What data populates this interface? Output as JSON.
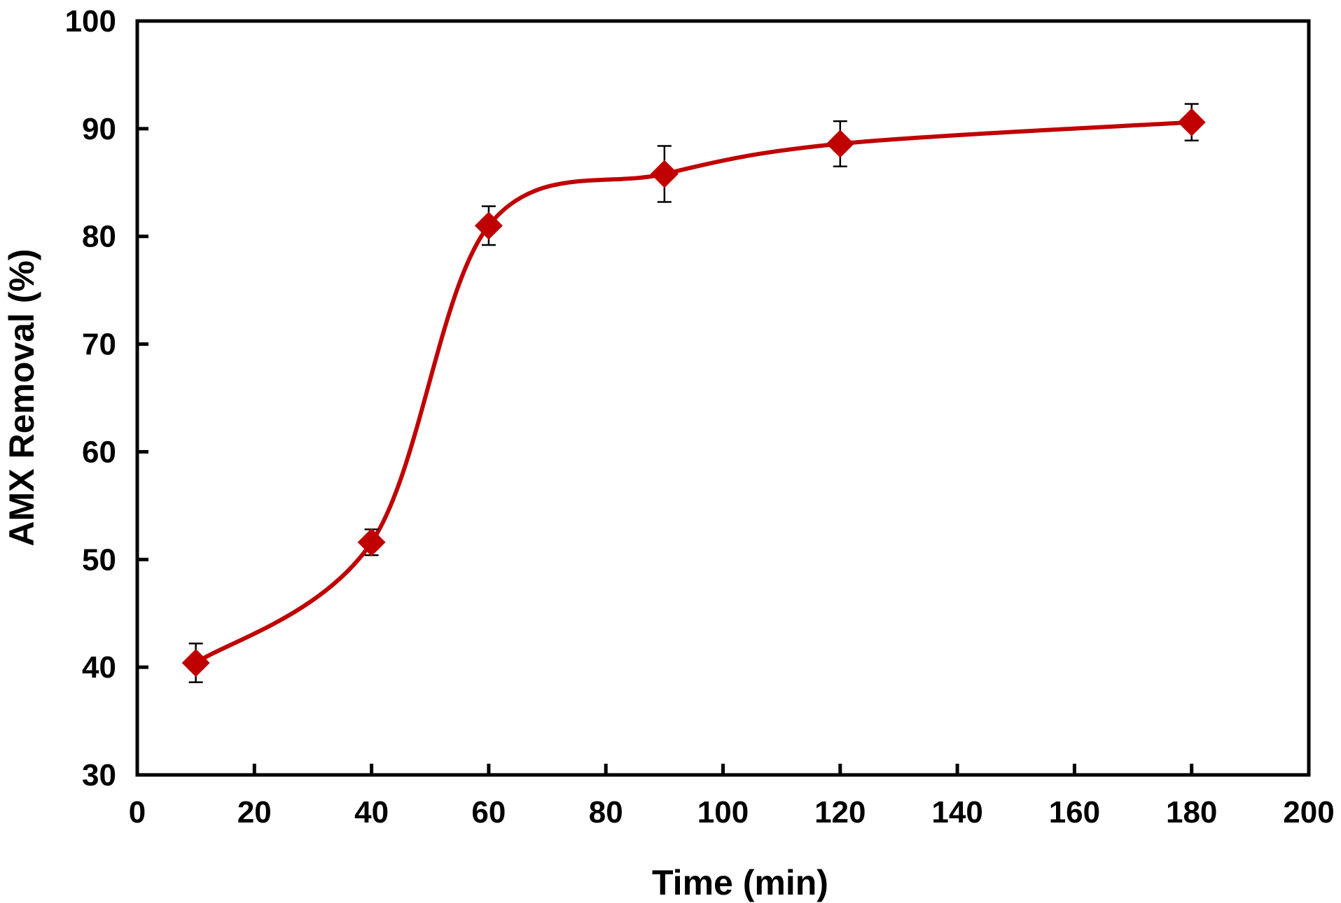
{
  "chart_data": {
    "type": "line",
    "title": "",
    "xlabel": "Time (min)",
    "ylabel": "AMX Removal (%)",
    "xlim": [
      0,
      200
    ],
    "ylim": [
      30,
      100
    ],
    "x_ticks": [
      "0",
      "20",
      "40",
      "60",
      "80",
      "100",
      "120",
      "140",
      "160",
      "180",
      "200"
    ],
    "y_ticks": [
      "30",
      "40",
      "50",
      "60",
      "70",
      "80",
      "90",
      "100"
    ],
    "grid": false,
    "legend": "none",
    "series": [
      {
        "color": "#c00000",
        "marker": "diamond",
        "smooth": true,
        "x": [
          10,
          40,
          60,
          90,
          120,
          180
        ],
        "y": [
          40.4,
          51.6,
          81.0,
          85.8,
          88.6,
          90.6
        ],
        "error": [
          1.8,
          1.2,
          1.8,
          2.6,
          2.1,
          1.7
        ]
      }
    ]
  }
}
